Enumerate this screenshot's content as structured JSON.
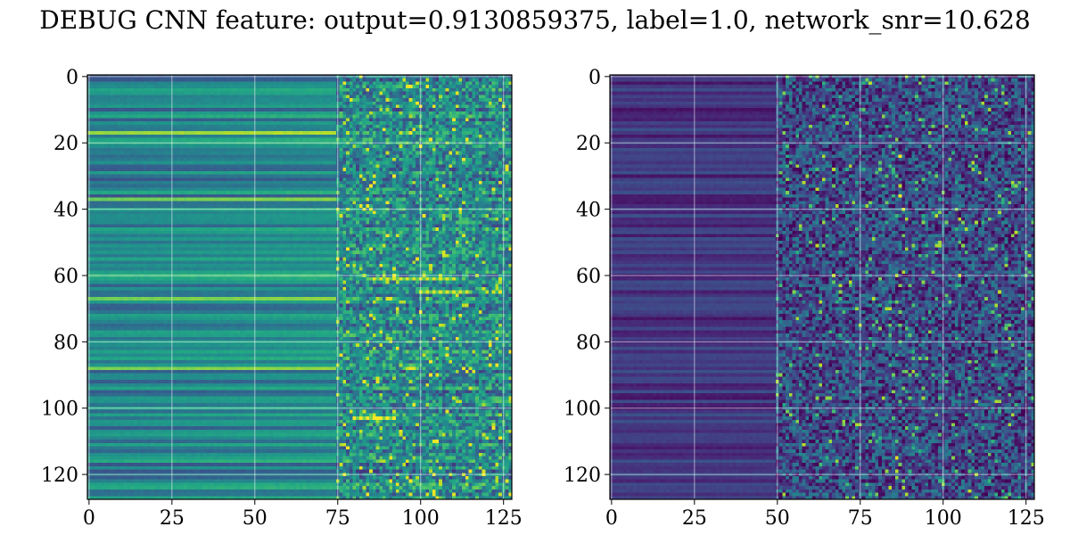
{
  "figure": {
    "title": "DEBUG CNN feature: output=0.9130859375, label=1.0, network_snr=10.628"
  },
  "chart_data": [
    {
      "type": "heatmap",
      "panel": "left",
      "colormap": "viridis",
      "rows": 128,
      "cols": 128,
      "xlim": [
        0,
        128
      ],
      "ylim": [
        128,
        0
      ],
      "xticks": [
        0,
        25,
        50,
        75,
        100,
        125
      ],
      "yticks": [
        0,
        20,
        40,
        60,
        80,
        100,
        120
      ],
      "grid": true,
      "value_range": [
        0,
        1
      ],
      "column_profile": [
        {
          "col_start": 0,
          "col_end": 75,
          "mean": 0.42,
          "row_variation": "smooth horizontal bands"
        },
        {
          "col_start": 75,
          "col_end": 128,
          "mean": 0.35,
          "row_variation": "noisy, scattered bright pixels"
        }
      ],
      "bright_rows": [
        5,
        17,
        37,
        55,
        60,
        67,
        88,
        100
      ],
      "hot_spots": [
        {
          "row": 103,
          "col_start": 80,
          "col_end": 92,
          "value": 1.0
        },
        {
          "row": 61,
          "col_start": 85,
          "col_end": 110,
          "value": 0.95
        },
        {
          "row": 65,
          "col_start": 100,
          "col_end": 115,
          "value": 0.95
        }
      ]
    },
    {
      "type": "heatmap",
      "panel": "right",
      "colormap": "viridis",
      "rows": 128,
      "cols": 128,
      "xlim": [
        0,
        128
      ],
      "ylim": [
        128,
        0
      ],
      "xticks": [
        0,
        25,
        50,
        75,
        100,
        125
      ],
      "yticks": [
        0,
        20,
        40,
        60,
        80,
        100,
        120
      ],
      "grid": true,
      "value_range": [
        0,
        1
      ],
      "column_profile": [
        {
          "col_start": 0,
          "col_end": 50,
          "mean": 0.12,
          "row_variation": "dark purple bands"
        },
        {
          "col_start": 50,
          "col_end": 128,
          "mean": 0.2,
          "row_variation": "noisy speckle"
        }
      ],
      "hot_spots": [
        {
          "row": 24,
          "col": 87,
          "value": 1.0
        },
        {
          "row": 36,
          "col": 87,
          "value": 1.0
        },
        {
          "row": 40,
          "col": 88,
          "value": 0.95
        },
        {
          "row": 115,
          "col": 86,
          "value": 0.95
        },
        {
          "row": 98,
          "col": 110,
          "value": 0.9
        },
        {
          "row": 50,
          "col": 99,
          "value": 0.85
        }
      ]
    }
  ]
}
